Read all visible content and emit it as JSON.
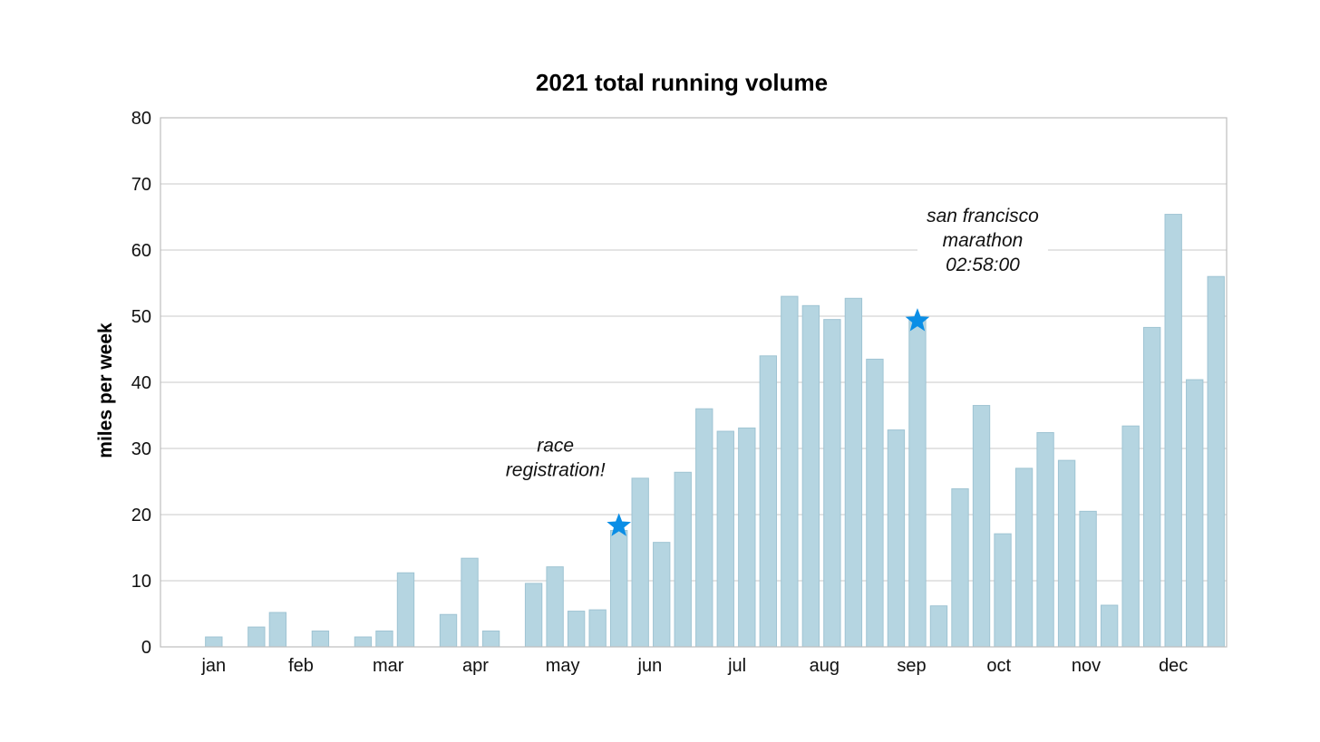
{
  "chart_data": {
    "type": "bar",
    "title": "2021 total running volume",
    "xlabel": "",
    "ylabel": "miles per week",
    "ylim": [
      0,
      80
    ],
    "yticks": [
      0,
      10,
      20,
      30,
      40,
      50,
      60,
      70,
      80
    ],
    "grid": true,
    "month_labels": [
      "jan",
      "feb",
      "mar",
      "apr",
      "may",
      "jun",
      "jul",
      "aug",
      "sep",
      "oct",
      "nov",
      "dec"
    ],
    "values": [
      0,
      0,
      1.5,
      0,
      3.0,
      5.2,
      0,
      2.4,
      0,
      1.5,
      2.4,
      11.2,
      0,
      4.9,
      13.4,
      2.4,
      0,
      9.6,
      12.1,
      5.4,
      5.6,
      17.6,
      25.5,
      15.8,
      26.4,
      36.0,
      32.6,
      33.1,
      44.0,
      53.0,
      51.6,
      49.5,
      52.7,
      43.5,
      32.8,
      49.4,
      6.2,
      23.9,
      36.5,
      17.1,
      27.0,
      32.4,
      28.2,
      20.5,
      6.3,
      33.4,
      48.3,
      65.4,
      40.4,
      56.0
    ],
    "annotations": [
      {
        "lines": [
          "race",
          "registration!"
        ],
        "marker": "star",
        "marker_color": "#0a8ee6",
        "week_index": 21,
        "y": 18.3
      },
      {
        "lines": [
          "san francisco",
          "marathon",
          "02:58:00"
        ],
        "marker": "star",
        "marker_color": "#0a8ee6",
        "week_index": 35,
        "y": 49.3
      }
    ],
    "colors": {
      "bar": "#b5d5e1",
      "bar_edge": "#9fc4d3",
      "star": "#0a8ee6",
      "grid": "#c8c8c8"
    }
  }
}
